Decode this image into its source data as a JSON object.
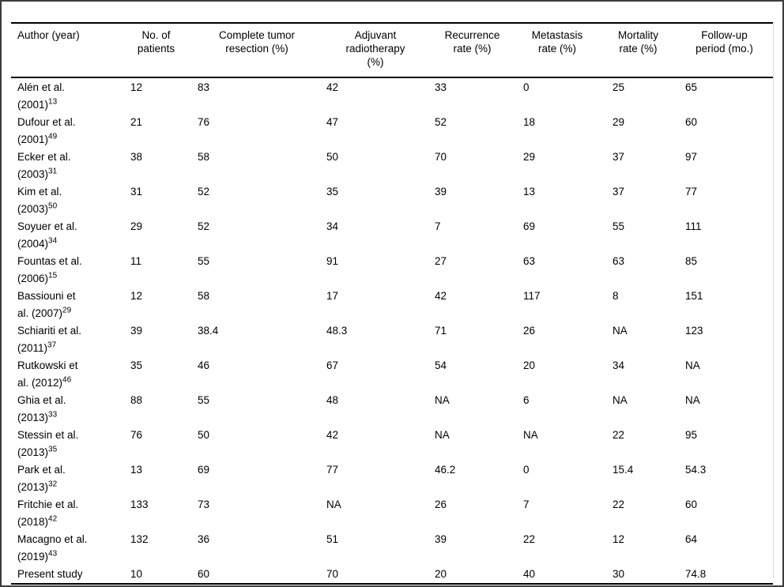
{
  "page": {
    "background": "#ffffff",
    "frame_color": "#3d3d3d",
    "rule_color": "#000000",
    "text_color": "#000000"
  },
  "table": {
    "columns": [
      {
        "id": "author",
        "lines": [
          "Author (year)"
        ]
      },
      {
        "id": "patients",
        "lines": [
          "No. of",
          "patients"
        ]
      },
      {
        "id": "resection",
        "lines": [
          "Complete tumor",
          "resection (%)"
        ]
      },
      {
        "id": "radiotherapy",
        "lines": [
          "Adjuvant",
          "radiotherapy",
          "(%)"
        ]
      },
      {
        "id": "recurrence",
        "lines": [
          "Recurrence",
          "rate (%)"
        ]
      },
      {
        "id": "metastasis",
        "lines": [
          "Metastasis",
          "rate (%)"
        ]
      },
      {
        "id": "mortality",
        "lines": [
          "Mortality",
          "rate (%)"
        ]
      },
      {
        "id": "followup",
        "lines": [
          "Follow-up",
          "period (mo.)"
        ]
      }
    ],
    "rows": [
      {
        "author_line1": "Alén et al.",
        "author_line2": "(2001)",
        "ref": "13",
        "values": [
          "12",
          "83",
          "42",
          "33",
          "0",
          "25",
          "65"
        ]
      },
      {
        "author_line1": "Dufour et al.",
        "author_line2": "(2001)",
        "ref": "49",
        "values": [
          "21",
          "76",
          "47",
          "52",
          "18",
          "29",
          "60"
        ]
      },
      {
        "author_line1": "Ecker et al.",
        "author_line2": "(2003)",
        "ref": "31",
        "values": [
          "38",
          "58",
          "50",
          "70",
          "29",
          "37",
          "97"
        ]
      },
      {
        "author_line1": "Kim et al.",
        "author_line2": "(2003)",
        "ref": "50",
        "values": [
          "31",
          "52",
          "35",
          "39",
          "13",
          "37",
          "77"
        ]
      },
      {
        "author_line1": "Soyuer et al.",
        "author_line2": "(2004)",
        "ref": "34",
        "values": [
          "29",
          "52",
          "34",
          "7",
          "69",
          "55",
          "111"
        ]
      },
      {
        "author_line1": "Fountas et al.",
        "author_line2": "(2006)",
        "ref": "15",
        "values": [
          "11",
          "55",
          "91",
          "27",
          "63",
          "63",
          "85"
        ]
      },
      {
        "author_line1": "Bassiouni et",
        "author_line2": "al. (2007)",
        "ref": "29",
        "values": [
          "12",
          "58",
          "17",
          "42",
          "117",
          "8",
          "151"
        ]
      },
      {
        "author_line1": "Schiariti et al.",
        "author_line2": "(2011)",
        "ref": "37",
        "values": [
          "39",
          "38.4",
          "48.3",
          "71",
          "26",
          "NA",
          "123"
        ]
      },
      {
        "author_line1": "Rutkowski et",
        "author_line2": "al. (2012)",
        "ref": "46",
        "values": [
          "35",
          "46",
          "67",
          "54",
          "20",
          "34",
          "NA"
        ]
      },
      {
        "author_line1": "Ghia et al.",
        "author_line2": "(2013)",
        "ref": "33",
        "values": [
          "88",
          "55",
          "48",
          "NA",
          "6",
          "NA",
          "NA"
        ]
      },
      {
        "author_line1": "Stessin et al.",
        "author_line2": "(2013)",
        "ref": "35",
        "values": [
          "76",
          "50",
          "42",
          "NA",
          "NA",
          "22",
          "95"
        ]
      },
      {
        "author_line1": "Park et al.",
        "author_line2": "(2013)",
        "ref": "32",
        "values": [
          "13",
          "69",
          "77",
          "46.2",
          "0",
          "15.4",
          "54.3"
        ]
      },
      {
        "author_line1": "Fritchie et al.",
        "author_line2": "(2018)",
        "ref": "42",
        "values": [
          "133",
          "73",
          "NA",
          "26",
          "7",
          "22",
          "60"
        ]
      },
      {
        "author_line1": "Macagno et al.",
        "author_line2": "(2019)",
        "ref": "43",
        "values": [
          "132",
          "36",
          "51",
          "39",
          "22",
          "12",
          "64"
        ]
      },
      {
        "author_line1": "Present study",
        "author_line2": "",
        "ref": "",
        "values": [
          "10",
          "60",
          "70",
          "20",
          "40",
          "30",
          "74.8"
        ]
      }
    ]
  }
}
